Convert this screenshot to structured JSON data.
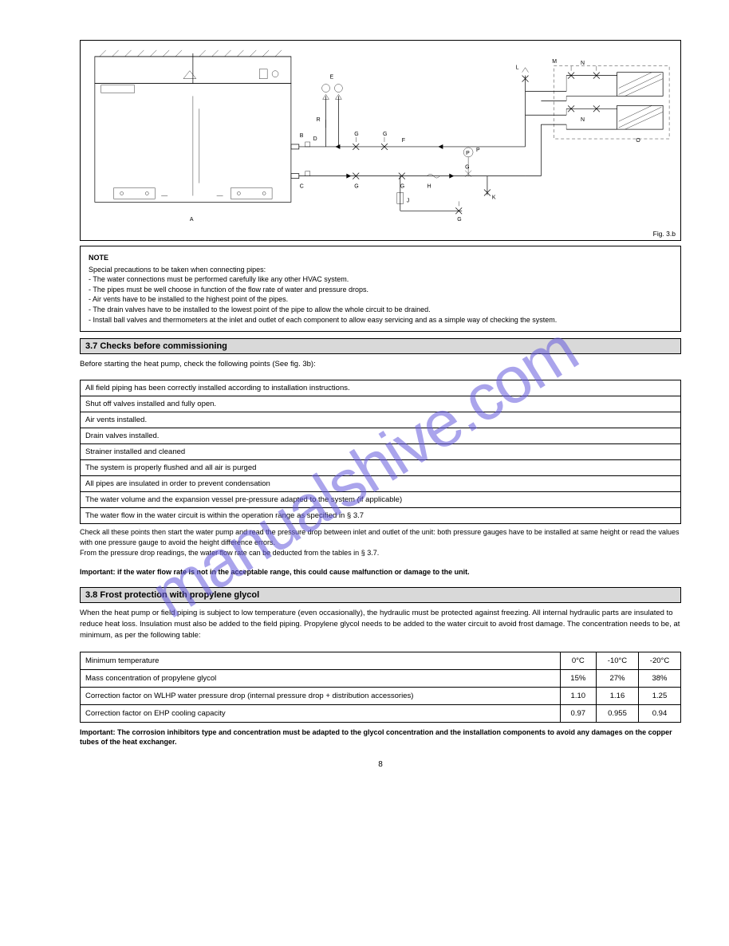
{
  "watermark": "manualshive.com",
  "diagram": {
    "labels": {
      "a": "A",
      "b": "B",
      "c": "C",
      "d": "D",
      "e": "E",
      "r": "R",
      "f": "F",
      "g1": "G",
      "g2": "G",
      "g3": "G",
      "g4": "G",
      "g5": "G",
      "g6": "G",
      "h": "H",
      "j": "J",
      "k": "K",
      "l": "L",
      "m": "M",
      "n1": "N",
      "n2": "N",
      "o": "O",
      "p": "P"
    },
    "fig_caption": "Fig. 3.b"
  },
  "note": {
    "label": "NOTE",
    "title": "Special precautions to be taken when connecting pipes:",
    "items": [
      "The water connections must be performed carefully like any other HVAC system.",
      "The pipes must be well choose in function of the flow rate of water and pressure drops.",
      "Air vents have to be installed to the highest point of the pipes.",
      "The drain valves have to be installed to the lowest point of the pipe to allow the whole circuit to be drained.",
      "Install ball valves and thermometers at the inlet and outlet of each component to allow easy servicing and as a simple way of checking the system."
    ]
  },
  "checks_header": "3.7 Checks before commissioning",
  "checks_intro": "Before starting the heat pump, check the following points (See fig. 3b):",
  "checklist": [
    "All field piping has been correctly installed according to installation instructions.",
    "Shut off valves installed and fully open.",
    "Air vents installed.",
    "Drain valves installed.",
    "Strainer installed and cleaned",
    "The system is properly flushed and all air is purged",
    "All pipes are insulated in order to prevent condensation",
    "The water volume and the expansion vessel pre-pressure adapted to the system (if applicable)",
    "The water flow in the water circuit is within the operation range as specified in § 3.7"
  ],
  "check_note_1": "Check all these points then start the water pump and read the pressure drop between inlet and outlet of the unit: both pressure gauges have to be installed at same height or read the values with one pressure gauge to avoid the height difference errors.\nFrom the pressure drop readings, the water flow rate can be deducted from the tables in § 3.7.",
  "check_note_2": "Important: if the water flow rate is not in the acceptable range, this could cause malfunction or damage to the unit.",
  "glycol_header": "3.8 Frost protection with propylene glycol",
  "glycol_intro": "When the heat pump or field piping is subject to low temperature (even occasionally), the hydraulic must be protected against freezing.\nAll internal hydraulic parts are insulated to reduce heat loss. Insulation must also be added to the field piping.\nPropylene glycol needs to be added to the water circuit to avoid frost damage. The concentration needs to be, at minimum, as per the following table:",
  "glycol_table": {
    "headers": [
      "Minimum temperature",
      "0°C",
      "-10°C",
      "-20°C"
    ],
    "rows": [
      [
        "Mass concentration of propylene glycol",
        "15%",
        "27%",
        "38%"
      ],
      [
        "Correction factor on WLHP water pressure drop (internal pressure drop + distribution accessories)",
        "1.10",
        "1.16",
        "1.25"
      ],
      [
        "Correction factor on EHP cooling capacity",
        "0.97",
        "0.955",
        "0.94"
      ]
    ]
  },
  "glycol_note": "Important: The corrosion inhibitors type and concentration must be adapted to the glycol concentration and the installation components to avoid any damages on the copper tubes of the heat exchanger.",
  "page_number": "8"
}
